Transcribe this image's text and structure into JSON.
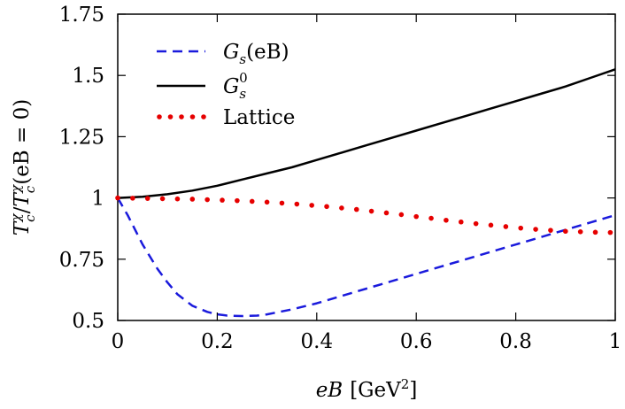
{
  "chart_data": {
    "type": "line",
    "title": "",
    "xlabel": "eB [GeV²]",
    "xlabel_parts": {
      "var": "eB",
      "unit_pre": "[GeV",
      "unit_sup": "2",
      "unit_post": "]"
    },
    "ylabel": "T_c^χ / T_c^χ(eB = 0)",
    "ylabel_parts": {
      "t": "T",
      "c": "c",
      "chi": "χ",
      "slash": "/",
      "paren": "(eB = 0)"
    },
    "xlim": [
      0,
      1
    ],
    "ylim": [
      0.5,
      1.75
    ],
    "xticks": [
      0,
      0.2,
      0.4,
      0.6,
      0.8,
      1
    ],
    "xtick_labels": [
      "0",
      "0.2",
      "0.4",
      "0.6",
      "0.8",
      "1"
    ],
    "yticks": [
      0.5,
      0.75,
      1,
      1.25,
      1.5,
      1.75
    ],
    "ytick_labels": [
      "0.5",
      "0.75",
      "1",
      "1.25",
      "1.5",
      "1.75"
    ],
    "grid": false,
    "legend_position": "top-left",
    "series": [
      {
        "name": "Gs(eB)",
        "name_parts": {
          "g": "G",
          "sub": "s",
          "arg": "(eB)"
        },
        "style": "dashed",
        "color": "#1a1adc",
        "x": [
          0,
          0.02,
          0.05,
          0.08,
          0.1,
          0.12,
          0.15,
          0.18,
          0.2,
          0.22,
          0.25,
          0.28,
          0.3,
          0.35,
          0.4,
          0.45,
          0.5,
          0.55,
          0.6,
          0.65,
          0.7,
          0.75,
          0.8,
          0.85,
          0.9,
          0.95,
          1.0
        ],
        "y": [
          1.0,
          0.93,
          0.81,
          0.71,
          0.655,
          0.607,
          0.56,
          0.535,
          0.525,
          0.52,
          0.518,
          0.52,
          0.525,
          0.545,
          0.57,
          0.6,
          0.63,
          0.66,
          0.69,
          0.72,
          0.75,
          0.78,
          0.81,
          0.84,
          0.87,
          0.9,
          0.93
        ]
      },
      {
        "name": "Gs0",
        "name_parts": {
          "g": "G",
          "sub": "s",
          "sup": "0"
        },
        "style": "solid",
        "color": "#000000",
        "x": [
          0,
          0.05,
          0.1,
          0.15,
          0.2,
          0.25,
          0.3,
          0.35,
          0.4,
          0.45,
          0.5,
          0.55,
          0.6,
          0.65,
          0.7,
          0.75,
          0.8,
          0.85,
          0.9,
          0.95,
          1.0
        ],
        "y": [
          1.0,
          1.005,
          1.015,
          1.03,
          1.05,
          1.075,
          1.1,
          1.125,
          1.155,
          1.185,
          1.215,
          1.245,
          1.275,
          1.305,
          1.335,
          1.365,
          1.395,
          1.425,
          1.455,
          1.49,
          1.525
        ]
      },
      {
        "name": "Lattice",
        "style": "dotted",
        "color": "#e60000",
        "x": [
          0,
          0.03,
          0.06,
          0.09,
          0.12,
          0.15,
          0.18,
          0.21,
          0.24,
          0.27,
          0.3,
          0.33,
          0.36,
          0.39,
          0.42,
          0.45,
          0.48,
          0.51,
          0.54,
          0.57,
          0.6,
          0.63,
          0.66,
          0.69,
          0.72,
          0.75,
          0.78,
          0.81,
          0.84,
          0.87,
          0.9,
          0.93,
          0.96,
          0.99
        ],
        "y": [
          1.0,
          0.999,
          0.998,
          0.997,
          0.996,
          0.995,
          0.993,
          0.991,
          0.989,
          0.986,
          0.983,
          0.979,
          0.975,
          0.97,
          0.965,
          0.959,
          0.953,
          0.946,
          0.939,
          0.932,
          0.924,
          0.917,
          0.909,
          0.902,
          0.895,
          0.889,
          0.883,
          0.877,
          0.872,
          0.868,
          0.864,
          0.862,
          0.86,
          0.859
        ]
      }
    ]
  }
}
